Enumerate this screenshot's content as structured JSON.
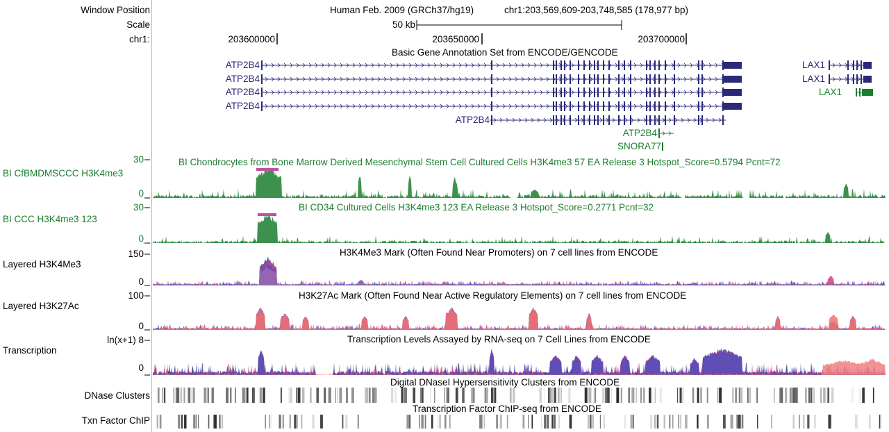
{
  "labels": {
    "window_position": "Window Position",
    "scale": "Scale",
    "chrom": "chr1:",
    "track1": "BI CfBMDMSCCC H3K4me3",
    "track2": "BI CCC H3K4me3 123",
    "track3": "Layered H3K4Me3",
    "track4": "Layered H3K27Ac",
    "track5": "Transcription",
    "track6": "DNase Clusters",
    "track7": "Txn Factor ChIP"
  },
  "header": {
    "assembly": "Human Feb. 2009 (GRCh37/hg19)",
    "position": "chr1:203,569,609-203,748,585 (178,977 bp)",
    "scale_label": "50 kb",
    "ruler_ticks": [
      "203600000",
      "203650000",
      "203700000"
    ]
  },
  "genes": {
    "title": "Basic Gene Annotation Set from ENCODE/GENCODE",
    "atp2b4": "ATP2B4",
    "lax1": "LAX1",
    "snora77": "SNORA77"
  },
  "tracks": {
    "t1": {
      "title": "BI Chondrocytes from Bone Marrow Derived Mesenchymal Stem Cell Cultured Cells H3K4me3 57 EA Release 3 Hotspot_Score=0.5794 Pcnt=72",
      "max": "30",
      "min": "0"
    },
    "t2": {
      "title": "BI CD34 Cultured Cells H3K4me3 123 EA Release 3 Hotspot_Score=0.2771 Pcnt=32",
      "max": "30",
      "min": "0"
    },
    "t3": {
      "title": "H3K4Me3 Mark (Often Found Near Promoters) on 7 cell lines from ENCODE",
      "max": "150",
      "min": "0"
    },
    "t4": {
      "title": "H3K27Ac Mark (Often Found Near Active Regulatory Elements) on 7 cell lines from ENCODE",
      "max": "100",
      "min": "0"
    },
    "t5": {
      "title": "Transcription Levels Assayed by RNA-seq on 7 Cell Lines from ENCODE",
      "max": "ln(x+1) 8",
      "min": "0"
    },
    "t6": {
      "title": "Digital DNaseI Hypersensitivity Clusters from ENCODE"
    },
    "t7": {
      "title": "Transcription Factor ChIP-seq from ENCODE"
    }
  },
  "colors": {
    "green": "#1a7f2e",
    "navy": "#2b2a7a",
    "magenta": "#c050a0",
    "separator": "#f2a0a0"
  }
}
